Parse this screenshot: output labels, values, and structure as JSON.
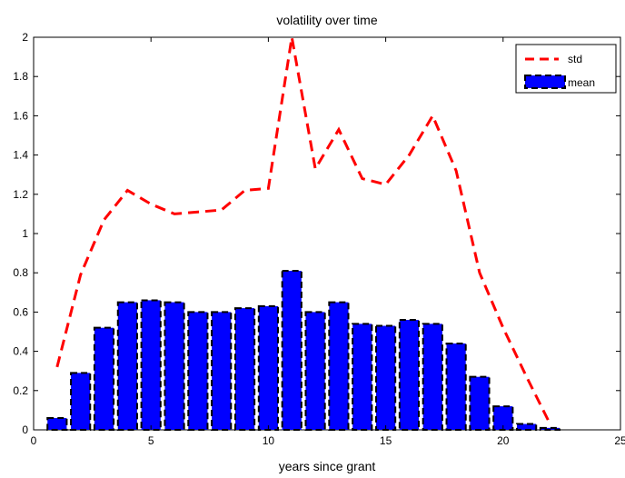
{
  "chart_data": {
    "type": "bar",
    "title": "volatility over time",
    "xlabel": "years since grant",
    "ylabel": "",
    "xlim": [
      0,
      25
    ],
    "ylim": [
      0,
      2
    ],
    "xticks": [
      "0",
      "5",
      "10",
      "15",
      "20",
      "25"
    ],
    "yticks": [
      "0",
      "0.2",
      "0.4",
      "0.6",
      "0.8",
      "1",
      "1.2",
      "1.4",
      "1.6",
      "1.8",
      "2"
    ],
    "grid": false,
    "legend_position": "top-right",
    "x": [
      1,
      2,
      3,
      4,
      5,
      6,
      7,
      8,
      9,
      10,
      11,
      12,
      13,
      14,
      15,
      16,
      17,
      18,
      19,
      20,
      21,
      22
    ],
    "series": [
      {
        "name": "std",
        "type": "line",
        "style": "dashed",
        "color": "#ff0000",
        "values": [
          0.32,
          0.79,
          1.07,
          1.22,
          1.15,
          1.1,
          1.11,
          1.12,
          1.22,
          1.23,
          2.0,
          1.33,
          1.53,
          1.28,
          1.25,
          1.4,
          1.6,
          1.32,
          0.8,
          0.52,
          0.27,
          0.03
        ]
      },
      {
        "name": "mean",
        "type": "bar",
        "color": "#0000ff",
        "edge_color": "#000000",
        "values": [
          0.06,
          0.29,
          0.52,
          0.65,
          0.66,
          0.65,
          0.6,
          0.6,
          0.62,
          0.63,
          0.81,
          0.6,
          0.65,
          0.54,
          0.53,
          0.56,
          0.54,
          0.44,
          0.27,
          0.12,
          0.03,
          0.01
        ]
      }
    ]
  }
}
